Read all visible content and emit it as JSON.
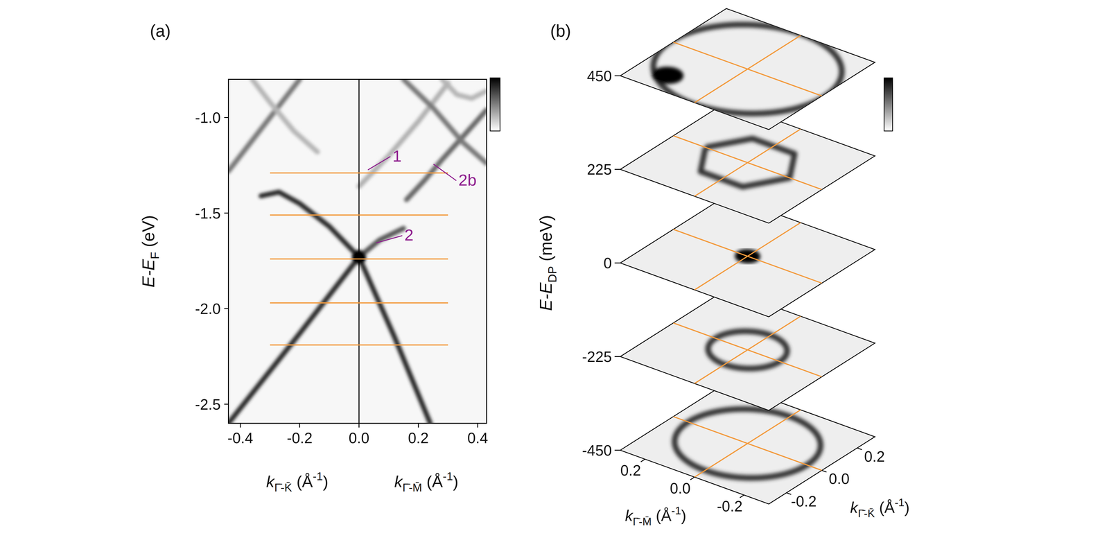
{
  "chart_data": [
    {
      "type": "band_map",
      "panel": "(a)",
      "x_label_left": {
        "text": "k",
        "sub": "Γ̄-K̄",
        "after": " (Å",
        "sup": "-1",
        "end": ")"
      },
      "x_label_right": {
        "text": "k",
        "sub": "Γ̄-M̄",
        "after": " (Å",
        "sup": "-1",
        "end": ")"
      },
      "y_label": {
        "text": "E-E",
        "sub": "F",
        "after": " (eV)"
      },
      "xlim": [
        -0.44,
        0.43
      ],
      "ylim": [
        -2.6,
        -0.8
      ],
      "xticks": [
        -0.4,
        -0.2,
        {
          "value": 0,
          "label": "0.0"
        },
        0.2,
        0.4
      ],
      "yticks": [
        {
          "value": -1,
          "label": "-1.0"
        },
        -1.5,
        {
          "value": -2,
          "label": "-2.0"
        },
        -2.5
      ],
      "divider": 0,
      "series": [
        {
          "color": "#2a2a2a",
          "x": [
            0,
            -0.2,
            -0.44
          ],
          "y": [
            -1.73,
            -2.13,
            -2.6
          ]
        },
        {
          "color": "#2a2a2a",
          "x": [
            0,
            0.12,
            0.24
          ],
          "y": [
            -1.73,
            -2.15,
            -2.6
          ]
        },
        {
          "color": "#2a2a2a",
          "x": [
            0,
            -0.1,
            -0.2,
            -0.27,
            -0.33
          ],
          "y": [
            -1.73,
            -1.57,
            -1.45,
            -1.39,
            -1.41
          ]
        },
        {
          "color": "#555555",
          "x": [
            0,
            0.07,
            0.15
          ],
          "y": [
            -1.73,
            -1.64,
            -1.58
          ]
        },
        {
          "color": "#b0b0b0",
          "x": [
            0,
            0.1,
            0.2,
            0.3
          ],
          "y": [
            -1.36,
            -1.2,
            -1.02,
            -0.82
          ]
        },
        {
          "color": "#666666",
          "x": [
            0.16,
            0.22,
            0.28,
            0.35,
            0.43
          ],
          "y": [
            -1.43,
            -1.33,
            -1.22,
            -1.1,
            -0.96
          ]
        },
        {
          "color": "#777777",
          "x": [
            -0.44,
            -0.36,
            -0.28,
            -0.2
          ],
          "y": [
            -1.28,
            -1.12,
            -0.96,
            -0.8
          ]
        },
        {
          "color": "#b5b5b5",
          "x": [
            -0.36,
            -0.3,
            -0.22,
            -0.14
          ],
          "y": [
            -0.8,
            -0.92,
            -1.07,
            -1.18
          ]
        },
        {
          "color": "#777777",
          "x": [
            0.15,
            0.25,
            0.35,
            0.43
          ],
          "y": [
            -0.8,
            -0.95,
            -1.13,
            -1.24
          ]
        },
        {
          "color": "#b5b5b5",
          "x": [
            0.28,
            0.33,
            0.38,
            0.43
          ],
          "y": [
            -0.8,
            -0.88,
            -0.9,
            -0.86
          ]
        }
      ],
      "spots": [
        {
          "x": 0,
          "y": -1.73
        }
      ],
      "cuts": {
        "energies": [
          -1.29,
          -1.51,
          -1.74,
          -1.97,
          -2.19
        ],
        "xlim": [
          -0.3,
          0.3
        ],
        "color": "#f39a3c"
      },
      "annotations": [
        {
          "text": "1",
          "x": 0.113,
          "y": -1.23,
          "target_x": 0.03,
          "target_y": -1.274
        },
        {
          "text": "2",
          "x": 0.153,
          "y": -1.644,
          "target_x": 0.058,
          "target_y": -1.656
        },
        {
          "text": "2b",
          "x": 0.335,
          "y": -1.356,
          "target_x": 0.251,
          "target_y": -1.244
        }
      ],
      "annotation_color": "#8e1f8e"
    },
    {
      "type": "constant_energy_maps",
      "panel": "(b)",
      "z_label": {
        "text": "E-E",
        "sub": "DP",
        "after": " (meV)"
      },
      "x_label": {
        "text": "k",
        "sub": "Γ̄-M̄",
        "after": " (Å",
        "sup": "-1",
        "end": ")"
      },
      "y_label": {
        "text": "k",
        "sub": "Γ̄-K̄",
        "after": " (Å",
        "sup": "-1",
        "end": ")"
      },
      "zlim": [
        -450,
        450
      ],
      "zticks": [
        -450,
        -225,
        0,
        225,
        450
      ],
      "xlim": [
        0.3,
        -0.3
      ],
      "xticks": [
        0.2,
        {
          "value": 0,
          "label": "0.0"
        },
        -0.2
      ],
      "ylim": [
        -0.3,
        0.3
      ],
      "yticks": [
        -0.2,
        {
          "value": 0,
          "label": "0.0"
        },
        0.2
      ],
      "slices": [
        {
          "energy": -450,
          "features": [
            {
              "type": "ring",
              "x": 0,
              "y": 0,
              "r": 0.24
            }
          ]
        },
        {
          "energy": -225,
          "features": [
            {
              "type": "ring",
              "x": 0,
              "y": 0,
              "r": 0.13
            }
          ]
        },
        {
          "energy": 0,
          "features": [
            {
              "type": "spot",
              "x": 0,
              "y": 0,
              "r": 0.035
            }
          ]
        },
        {
          "energy": 225,
          "features": [
            {
              "type": "hexagon",
              "x": 0,
              "y": 0,
              "r": 0.17
            }
          ]
        },
        {
          "energy": 450,
          "features": [
            {
              "type": "ring",
              "x": 0,
              "y": 0,
              "r": 0.31
            },
            {
              "type": "spot",
              "x": 0.18,
              "y": -0.2,
              "r": 0.045
            }
          ]
        }
      ],
      "cut_lines": {
        "x": 0,
        "y": 0,
        "color": "#f39a3c"
      }
    }
  ]
}
